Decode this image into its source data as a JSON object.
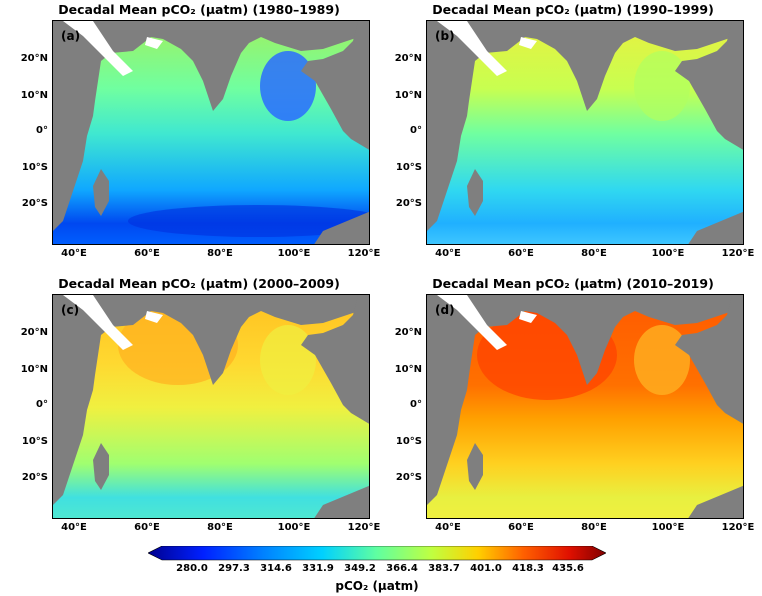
{
  "panels": [
    {
      "title": "Decadal Mean pCO₂ (µatm) (1980–1989)",
      "label": "(a)"
    },
    {
      "title": "Decadal Mean pCO₂ (µatm) (1990–1999)",
      "label": "(b)"
    },
    {
      "title": "Decadal Mean pCO₂ (µatm) (2000–2009)",
      "label": "(c)"
    },
    {
      "title": "Decadal Mean pCO₂ (µatm) (2010–2019)",
      "label": "(d)"
    }
  ],
  "lat_ticks": [
    "20°N",
    "10°N",
    "0°",
    "10°S",
    "20°S"
  ],
  "lon_ticks": [
    "40°E",
    "60°E",
    "80°E",
    "100°E",
    "120°E"
  ],
  "colorbar": {
    "label": "pCO₂ (µatm)",
    "ticks": [
      "280.0",
      "297.3",
      "314.6",
      "331.9",
      "349.2",
      "366.4",
      "383.7",
      "401.0",
      "418.3",
      "435.6"
    ]
  },
  "colors": {
    "land": "#7f7f7f",
    "ramp": [
      "#00008f",
      "#0020ff",
      "#0080ff",
      "#00d0ff",
      "#60ffa0",
      "#c0ff40",
      "#ffd000",
      "#ff6000",
      "#e01000",
      "#800000"
    ]
  }
}
